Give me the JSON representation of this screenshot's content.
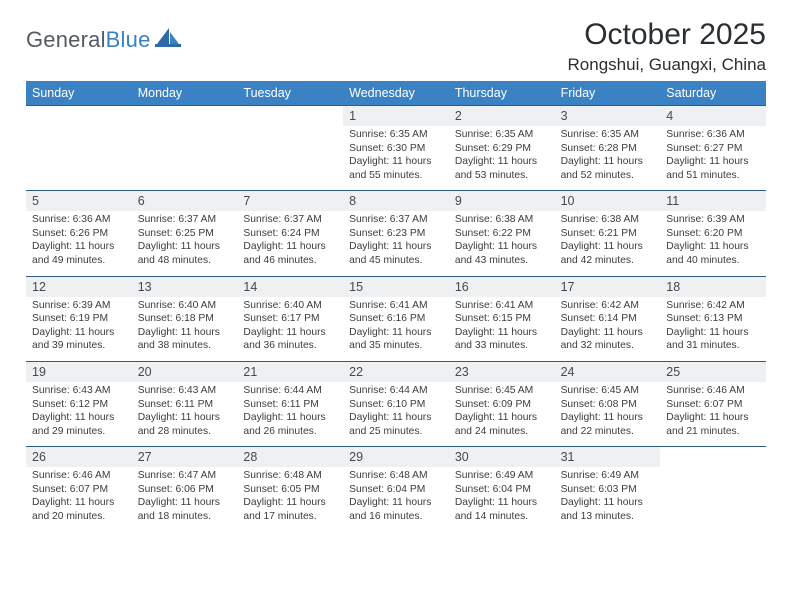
{
  "logo": {
    "word1": "General",
    "word2": "Blue"
  },
  "title": "October 2025",
  "subtitle": "Rongshui, Guangxi, China",
  "colors": {
    "header_bg": "#3b82c4",
    "header_text": "#ffffff",
    "daynum_bg": "#eef0f2",
    "row_border": "#2f5b86",
    "text": "#3a3d40",
    "title_color": "#2a2f34"
  },
  "dayNames": [
    "Sunday",
    "Monday",
    "Tuesday",
    "Wednesday",
    "Thursday",
    "Friday",
    "Saturday"
  ],
  "weeks": [
    [
      {
        "n": "",
        "sunrise": "",
        "sunset": "",
        "daylight": ""
      },
      {
        "n": "",
        "sunrise": "",
        "sunset": "",
        "daylight": ""
      },
      {
        "n": "",
        "sunrise": "",
        "sunset": "",
        "daylight": ""
      },
      {
        "n": "1",
        "sunrise": "6:35 AM",
        "sunset": "6:30 PM",
        "daylight": "11 hours and 55 minutes."
      },
      {
        "n": "2",
        "sunrise": "6:35 AM",
        "sunset": "6:29 PM",
        "daylight": "11 hours and 53 minutes."
      },
      {
        "n": "3",
        "sunrise": "6:35 AM",
        "sunset": "6:28 PM",
        "daylight": "11 hours and 52 minutes."
      },
      {
        "n": "4",
        "sunrise": "6:36 AM",
        "sunset": "6:27 PM",
        "daylight": "11 hours and 51 minutes."
      }
    ],
    [
      {
        "n": "5",
        "sunrise": "6:36 AM",
        "sunset": "6:26 PM",
        "daylight": "11 hours and 49 minutes."
      },
      {
        "n": "6",
        "sunrise": "6:37 AM",
        "sunset": "6:25 PM",
        "daylight": "11 hours and 48 minutes."
      },
      {
        "n": "7",
        "sunrise": "6:37 AM",
        "sunset": "6:24 PM",
        "daylight": "11 hours and 46 minutes."
      },
      {
        "n": "8",
        "sunrise": "6:37 AM",
        "sunset": "6:23 PM",
        "daylight": "11 hours and 45 minutes."
      },
      {
        "n": "9",
        "sunrise": "6:38 AM",
        "sunset": "6:22 PM",
        "daylight": "11 hours and 43 minutes."
      },
      {
        "n": "10",
        "sunrise": "6:38 AM",
        "sunset": "6:21 PM",
        "daylight": "11 hours and 42 minutes."
      },
      {
        "n": "11",
        "sunrise": "6:39 AM",
        "sunset": "6:20 PM",
        "daylight": "11 hours and 40 minutes."
      }
    ],
    [
      {
        "n": "12",
        "sunrise": "6:39 AM",
        "sunset": "6:19 PM",
        "daylight": "11 hours and 39 minutes."
      },
      {
        "n": "13",
        "sunrise": "6:40 AM",
        "sunset": "6:18 PM",
        "daylight": "11 hours and 38 minutes."
      },
      {
        "n": "14",
        "sunrise": "6:40 AM",
        "sunset": "6:17 PM",
        "daylight": "11 hours and 36 minutes."
      },
      {
        "n": "15",
        "sunrise": "6:41 AM",
        "sunset": "6:16 PM",
        "daylight": "11 hours and 35 minutes."
      },
      {
        "n": "16",
        "sunrise": "6:41 AM",
        "sunset": "6:15 PM",
        "daylight": "11 hours and 33 minutes."
      },
      {
        "n": "17",
        "sunrise": "6:42 AM",
        "sunset": "6:14 PM",
        "daylight": "11 hours and 32 minutes."
      },
      {
        "n": "18",
        "sunrise": "6:42 AM",
        "sunset": "6:13 PM",
        "daylight": "11 hours and 31 minutes."
      }
    ],
    [
      {
        "n": "19",
        "sunrise": "6:43 AM",
        "sunset": "6:12 PM",
        "daylight": "11 hours and 29 minutes."
      },
      {
        "n": "20",
        "sunrise": "6:43 AM",
        "sunset": "6:11 PM",
        "daylight": "11 hours and 28 minutes."
      },
      {
        "n": "21",
        "sunrise": "6:44 AM",
        "sunset": "6:11 PM",
        "daylight": "11 hours and 26 minutes."
      },
      {
        "n": "22",
        "sunrise": "6:44 AM",
        "sunset": "6:10 PM",
        "daylight": "11 hours and 25 minutes."
      },
      {
        "n": "23",
        "sunrise": "6:45 AM",
        "sunset": "6:09 PM",
        "daylight": "11 hours and 24 minutes."
      },
      {
        "n": "24",
        "sunrise": "6:45 AM",
        "sunset": "6:08 PM",
        "daylight": "11 hours and 22 minutes."
      },
      {
        "n": "25",
        "sunrise": "6:46 AM",
        "sunset": "6:07 PM",
        "daylight": "11 hours and 21 minutes."
      }
    ],
    [
      {
        "n": "26",
        "sunrise": "6:46 AM",
        "sunset": "6:07 PM",
        "daylight": "11 hours and 20 minutes."
      },
      {
        "n": "27",
        "sunrise": "6:47 AM",
        "sunset": "6:06 PM",
        "daylight": "11 hours and 18 minutes."
      },
      {
        "n": "28",
        "sunrise": "6:48 AM",
        "sunset": "6:05 PM",
        "daylight": "11 hours and 17 minutes."
      },
      {
        "n": "29",
        "sunrise": "6:48 AM",
        "sunset": "6:04 PM",
        "daylight": "11 hours and 16 minutes."
      },
      {
        "n": "30",
        "sunrise": "6:49 AM",
        "sunset": "6:04 PM",
        "daylight": "11 hours and 14 minutes."
      },
      {
        "n": "31",
        "sunrise": "6:49 AM",
        "sunset": "6:03 PM",
        "daylight": "11 hours and 13 minutes."
      },
      {
        "n": "",
        "sunrise": "",
        "sunset": "",
        "daylight": ""
      }
    ]
  ]
}
